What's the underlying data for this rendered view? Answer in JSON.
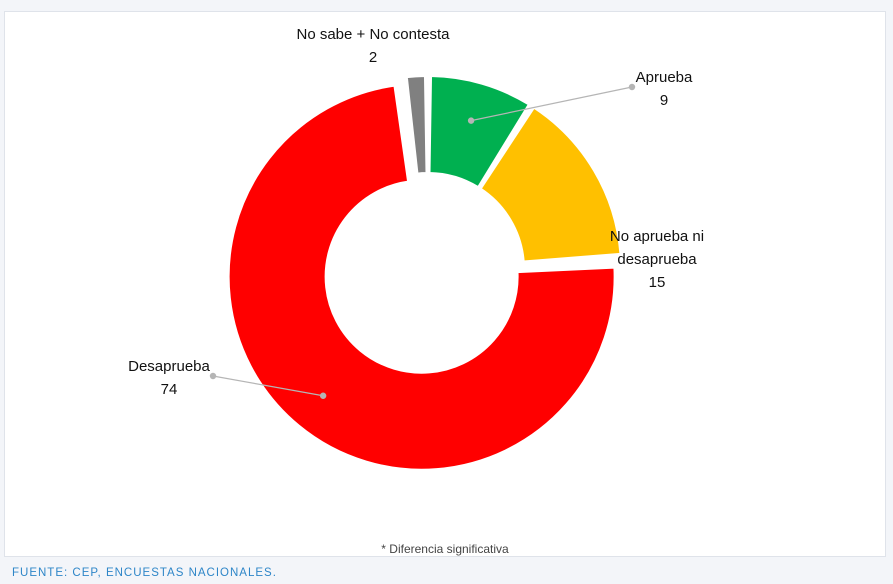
{
  "chart_data": {
    "type": "pie",
    "variant": "donut",
    "title": "",
    "slices": [
      {
        "label": "Aprueba",
        "value": 9,
        "color": "#00b050"
      },
      {
        "label": "No aprueba ni desaprueba",
        "value": 15,
        "color": "#ffc000"
      },
      {
        "label": "Desaprueba",
        "value": 74,
        "color": "#ff0000"
      },
      {
        "label": "No sabe + No contesta",
        "value": 2,
        "color": "#808080"
      }
    ],
    "exploded_slice": "Desaprueba",
    "label_lines": [
      "No sabe + No contesta",
      "Aprueba",
      "No aprueba ni",
      "desaprueba",
      "Desaprueba"
    ],
    "value_labels": [
      "2",
      "9",
      "15",
      "74"
    ]
  },
  "footnote": "* Diferencia significativa",
  "source": "FUENTE: CEP, ENCUESTAS NACIONALES."
}
